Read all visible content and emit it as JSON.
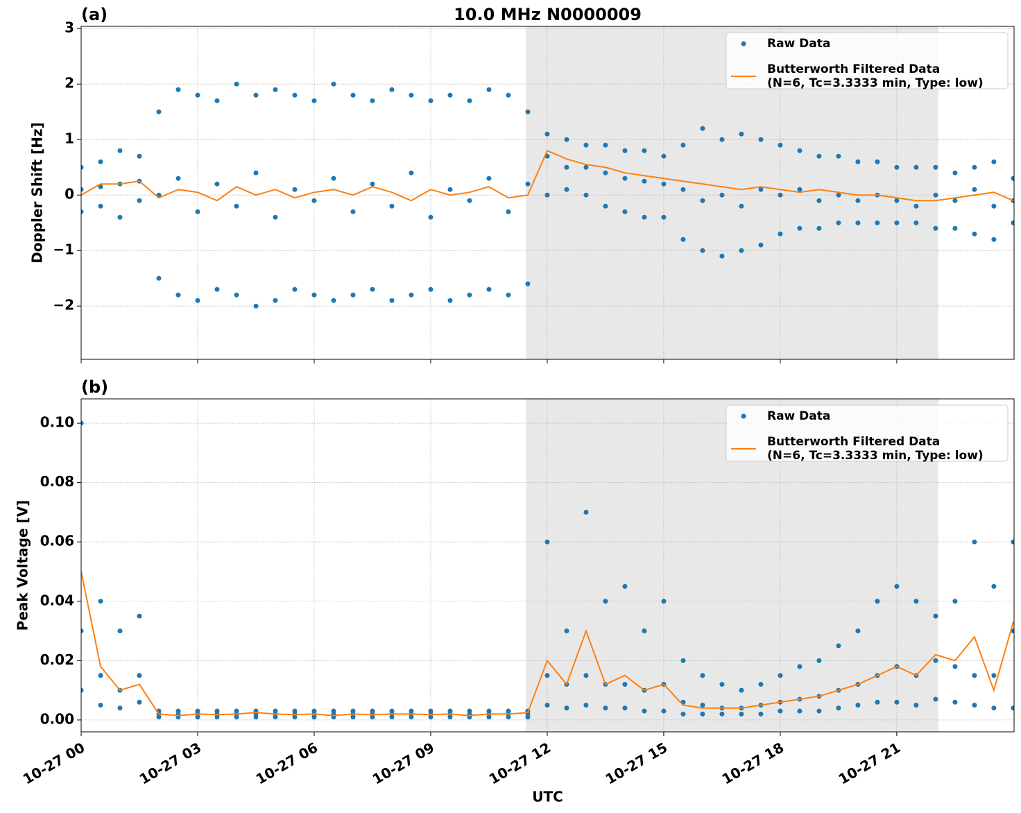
{
  "chart_data": [
    {
      "type": "line",
      "title": "10.0 MHz N0000009",
      "panel_label": "(a)",
      "ylabel": "Doppler Shift [Hz]",
      "xlim": [
        0,
        24.02
      ],
      "ylim": [
        -2.96,
        3.04
      ],
      "xticks": [
        0,
        3,
        6,
        9,
        12,
        15,
        18,
        21
      ],
      "yticks": [
        {
          "value": -2,
          "label": "−2"
        },
        {
          "value": -1,
          "label": "−1"
        },
        0,
        1,
        2,
        3
      ],
      "grid": true,
      "legend": "upper right",
      "shaded_span": [
        11.45,
        22.07
      ],
      "shade_color": "#e8e8e8",
      "series": [
        {
          "name": "Raw Data",
          "style": "marker",
          "color": "#1f77b4",
          "x": [
            0,
            0.5,
            1,
            1.5,
            2,
            2.5,
            3,
            3.5,
            4,
            4.5,
            5,
            5.5,
            6,
            6.5,
            7,
            7.5,
            8,
            8.5,
            9,
            9.5,
            10,
            10.5,
            11,
            11.5,
            12,
            12.5,
            13,
            13.5,
            14,
            14.5,
            15,
            15.5,
            16,
            16.5,
            17,
            17.5,
            18,
            18.5,
            19,
            19.5,
            20,
            20.5,
            21,
            21.5,
            22,
            22.5,
            23,
            23.5,
            24,
            0,
            0.5,
            1,
            1.5,
            2,
            2.5,
            3,
            3.5,
            4,
            4.5,
            5,
            5.5,
            6,
            6.5,
            7,
            7.5,
            8,
            8.5,
            9,
            9.5,
            10,
            10.5,
            11,
            11.5,
            12,
            12.5,
            13,
            13.5,
            14,
            14.5,
            15,
            15.5,
            16,
            16.5,
            17,
            17.5,
            18,
            18.5,
            19,
            19.5,
            20,
            20.5,
            21,
            21.5,
            22,
            22.5,
            23,
            23.5,
            24,
            0,
            0.5,
            1,
            1.5,
            2,
            2.5,
            3,
            3.5,
            4,
            4.5,
            5,
            5.5,
            6,
            6.5,
            7,
            7.5,
            8,
            8.5,
            9,
            9.5,
            10,
            10.5,
            11,
            11.5,
            12,
            12.5,
            13,
            13.5,
            14,
            14.5,
            15,
            15.5,
            16,
            16.5,
            17,
            17.5,
            18,
            18.5,
            19,
            19.5,
            20,
            20.5,
            21,
            21.5,
            22,
            22.5,
            23,
            23.5,
            24
          ],
          "values": [
            0.5,
            0.6,
            0.8,
            0.7,
            1.5,
            1.9,
            1.8,
            1.7,
            2.0,
            1.8,
            1.9,
            1.8,
            1.7,
            2.0,
            1.8,
            1.7,
            1.9,
            1.8,
            1.7,
            1.8,
            1.7,
            1.9,
            1.8,
            1.5,
            1.1,
            1.0,
            0.9,
            0.9,
            0.8,
            0.8,
            0.7,
            0.9,
            1.2,
            1.0,
            1.1,
            1.0,
            0.9,
            0.8,
            0.7,
            0.7,
            0.6,
            0.6,
            0.5,
            0.5,
            0.5,
            0.4,
            0.5,
            0.6,
            0.3,
            0.1,
            0.15,
            0.2,
            0.25,
            0.0,
            0.3,
            -0.3,
            0.2,
            -0.2,
            0.4,
            -0.4,
            0.1,
            -0.1,
            0.3,
            -0.3,
            0.2,
            -0.2,
            0.4,
            -0.4,
            0.1,
            -0.1,
            0.3,
            -0.3,
            0.2,
            0.7,
            0.5,
            0.5,
            0.4,
            0.3,
            0.25,
            0.2,
            0.1,
            -0.1,
            0.0,
            -0.2,
            0.1,
            0.0,
            0.1,
            -0.1,
            0.0,
            -0.1,
            0.0,
            -0.1,
            -0.2,
            0.0,
            -0.1,
            0.1,
            -0.2,
            -0.1,
            -0.3,
            -0.2,
            -0.4,
            -0.1,
            -1.5,
            -1.8,
            -1.9,
            -1.7,
            -1.8,
            -2.0,
            -1.9,
            -1.7,
            -1.8,
            -1.9,
            -1.8,
            -1.7,
            -1.9,
            -1.8,
            -1.7,
            -1.9,
            -1.8,
            -1.7,
            -1.8,
            -1.6,
            0.0,
            0.1,
            0.0,
            -0.2,
            -0.3,
            -0.4,
            -0.4,
            -0.8,
            -1.0,
            -1.1,
            -1.0,
            -0.9,
            -0.7,
            -0.6,
            -0.6,
            -0.5,
            -0.5,
            -0.5,
            -0.5,
            -0.5,
            -0.6,
            -0.6,
            -0.7,
            -0.8,
            -0.5
          ]
        },
        {
          "name": "Butterworth Filtered Data\n(N=6, Tc=3.3333 min, Type: low)",
          "style": "line",
          "color": "#ff7f0e",
          "x": [
            0,
            0.5,
            1,
            1.5,
            2,
            2.5,
            3,
            3.5,
            4,
            4.5,
            5,
            5.5,
            6,
            6.5,
            7,
            7.5,
            8,
            8.5,
            9,
            9.5,
            10,
            10.5,
            11,
            11.5,
            12,
            12.5,
            13,
            13.5,
            14,
            14.5,
            15,
            15.5,
            16,
            16.5,
            17,
            17.5,
            18,
            18.5,
            19,
            19.5,
            20,
            20.5,
            21,
            21.5,
            22,
            22.5,
            23,
            23.5,
            24
          ],
          "values": [
            0.0,
            0.2,
            0.2,
            0.25,
            -0.05,
            0.1,
            0.05,
            -0.1,
            0.15,
            0.0,
            0.1,
            -0.05,
            0.05,
            0.1,
            0.0,
            0.15,
            0.05,
            -0.1,
            0.1,
            0.0,
            0.05,
            0.15,
            -0.05,
            0.0,
            0.8,
            0.65,
            0.55,
            0.5,
            0.4,
            0.35,
            0.3,
            0.25,
            0.2,
            0.15,
            0.1,
            0.15,
            0.1,
            0.05,
            0.1,
            0.05,
            0.0,
            0.0,
            -0.05,
            -0.1,
            -0.1,
            -0.05,
            0.0,
            0.05,
            -0.1
          ]
        }
      ]
    },
    {
      "type": "line",
      "panel_label": "(b)",
      "ylabel": "Peak Voltage [V]",
      "xlabel": "UTC",
      "xlim": [
        0,
        24.02
      ],
      "ylim": [
        -0.004,
        0.1082
      ],
      "xticks": [
        {
          "value": 0,
          "label": "10-27 00"
        },
        {
          "value": 3,
          "label": "10-27 03"
        },
        {
          "value": 6,
          "label": "10-27 06"
        },
        {
          "value": 9,
          "label": "10-27 09"
        },
        {
          "value": 12,
          "label": "10-27 12"
        },
        {
          "value": 15,
          "label": "10-27 15"
        },
        {
          "value": 18,
          "label": "10-27 18"
        },
        {
          "value": 21,
          "label": "10-27 21"
        }
      ],
      "yticks": [
        {
          "value": 0,
          "label": "0.00"
        },
        {
          "value": 0.02,
          "label": "0.02"
        },
        {
          "value": 0.04,
          "label": "0.04"
        },
        {
          "value": 0.06,
          "label": "0.06"
        },
        {
          "value": 0.08,
          "label": "0.08"
        },
        {
          "value": 0.1,
          "label": "0.10"
        }
      ],
      "grid": true,
      "legend": "upper right",
      "shaded_span": [
        11.45,
        22.07
      ],
      "shade_color": "#e8e8e8",
      "series": [
        {
          "name": "Raw Data",
          "style": "marker",
          "color": "#1f77b4",
          "x": [
            0,
            0.5,
            1,
            1.5,
            2,
            2.5,
            3,
            3.5,
            4,
            4.5,
            5,
            5.5,
            6,
            6.5,
            7,
            7.5,
            8,
            8.5,
            9,
            9.5,
            10,
            10.5,
            11,
            11.5,
            12,
            12.5,
            13,
            13.5,
            14,
            14.5,
            15,
            15.5,
            16,
            16.5,
            17,
            17.5,
            18,
            18.5,
            19,
            19.5,
            20,
            20.5,
            21,
            21.5,
            22,
            22.5,
            23,
            23.5,
            24,
            0,
            0.5,
            1,
            1.5,
            2,
            2.5,
            3,
            3.5,
            4,
            4.5,
            5,
            5.5,
            6,
            6.5,
            7,
            7.5,
            8,
            8.5,
            9,
            9.5,
            10,
            10.5,
            11,
            11.5,
            12,
            12.5,
            13,
            13.5,
            14,
            14.5,
            15,
            15.5,
            16,
            16.5,
            17,
            17.5,
            18,
            18.5,
            19,
            19.5,
            20,
            20.5,
            21,
            21.5,
            22,
            22.5,
            23,
            23.5,
            24,
            0,
            0.5,
            1,
            1.5,
            2,
            2.5,
            3,
            3.5,
            4,
            4.5,
            5,
            5.5,
            6,
            6.5,
            7,
            7.5,
            8,
            8.5,
            9,
            9.5,
            10,
            10.5,
            11,
            11.5,
            12,
            12.5,
            13,
            13.5,
            14,
            14.5,
            15,
            15.5,
            16,
            16.5,
            17,
            17.5,
            18,
            18.5,
            19,
            19.5,
            20,
            20.5,
            21,
            21.5,
            22,
            22.5,
            23,
            23.5,
            24
          ],
          "values": [
            0.1,
            0.04,
            0.03,
            0.035,
            0.003,
            0.003,
            0.003,
            0.003,
            0.003,
            0.003,
            0.003,
            0.003,
            0.003,
            0.003,
            0.003,
            0.003,
            0.003,
            0.003,
            0.003,
            0.003,
            0.003,
            0.003,
            0.003,
            0.003,
            0.06,
            0.03,
            0.07,
            0.04,
            0.045,
            0.03,
            0.04,
            0.02,
            0.015,
            0.012,
            0.01,
            0.012,
            0.015,
            0.018,
            0.02,
            0.025,
            0.03,
            0.04,
            0.045,
            0.04,
            0.035,
            0.04,
            0.06,
            0.045,
            0.06,
            0.03,
            0.015,
            0.01,
            0.015,
            0.002,
            0.002,
            0.002,
            0.002,
            0.002,
            0.002,
            0.002,
            0.002,
            0.002,
            0.002,
            0.002,
            0.002,
            0.002,
            0.002,
            0.002,
            0.002,
            0.002,
            0.002,
            0.002,
            0.002,
            0.015,
            0.012,
            0.015,
            0.012,
            0.012,
            0.01,
            0.012,
            0.006,
            0.005,
            0.004,
            0.004,
            0.005,
            0.006,
            0.007,
            0.008,
            0.01,
            0.012,
            0.015,
            0.018,
            0.015,
            0.02,
            0.018,
            0.015,
            0.015,
            0.03,
            0.01,
            0.005,
            0.004,
            0.006,
            0.001,
            0.001,
            0.001,
            0.001,
            0.001,
            0.001,
            0.001,
            0.001,
            0.001,
            0.001,
            0.001,
            0.001,
            0.001,
            0.001,
            0.001,
            0.001,
            0.001,
            0.001,
            0.001,
            0.001,
            0.005,
            0.004,
            0.005,
            0.004,
            0.004,
            0.003,
            0.003,
            0.002,
            0.002,
            0.002,
            0.002,
            0.002,
            0.003,
            0.003,
            0.003,
            0.004,
            0.005,
            0.006,
            0.006,
            0.005,
            0.007,
            0.006,
            0.005,
            0.004,
            0.004
          ]
        },
        {
          "name": "Butterworth Filtered Data\n(N=6, Tc=3.3333 min, Type: low)",
          "style": "line",
          "color": "#ff7f0e",
          "x": [
            0,
            0.5,
            1,
            1.5,
            2,
            2.5,
            3,
            3.5,
            4,
            4.5,
            5,
            5.5,
            6,
            6.5,
            7,
            7.5,
            8,
            8.5,
            9,
            9.5,
            10,
            10.5,
            11,
            11.5,
            12,
            12.5,
            13,
            13.5,
            14,
            14.5,
            15,
            15.5,
            16,
            16.5,
            17,
            17.5,
            18,
            18.5,
            19,
            19.5,
            20,
            20.5,
            21,
            21.5,
            22,
            22.5,
            23,
            23.5,
            24
          ],
          "values": [
            0.05,
            0.018,
            0.01,
            0.012,
            0.002,
            0.0015,
            0.002,
            0.0018,
            0.002,
            0.0025,
            0.002,
            0.0018,
            0.002,
            0.0015,
            0.002,
            0.0018,
            0.002,
            0.002,
            0.0018,
            0.002,
            0.0015,
            0.002,
            0.002,
            0.0025,
            0.02,
            0.012,
            0.03,
            0.012,
            0.015,
            0.01,
            0.012,
            0.005,
            0.004,
            0.004,
            0.004,
            0.005,
            0.006,
            0.007,
            0.008,
            0.01,
            0.012,
            0.015,
            0.018,
            0.015,
            0.022,
            0.02,
            0.028,
            0.01,
            0.033
          ]
        }
      ]
    }
  ]
}
